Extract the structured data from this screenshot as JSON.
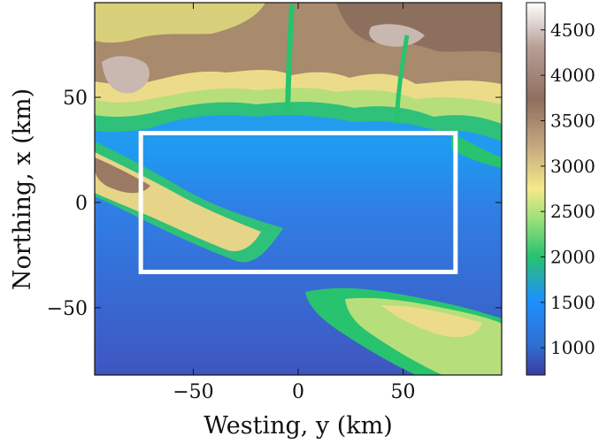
{
  "chart_data": {
    "type": "heatmap",
    "title": "",
    "xlabel": "Westing, y (km)",
    "ylabel": "Northing, x (km)",
    "xlim": [
      -97,
      97
    ],
    "ylim": [
      -82,
      95
    ],
    "xticks": [
      -50,
      0,
      50
    ],
    "xtick_labels": [
      "−50",
      "0",
      "50"
    ],
    "yticks": [
      -50,
      0,
      50
    ],
    "ytick_labels": [
      "−50",
      "0",
      "50"
    ],
    "colorbar": {
      "range": [
        700,
        4800
      ],
      "ticks": [
        1000,
        1500,
        2000,
        2500,
        3000,
        3500,
        4000,
        4500
      ],
      "tick_labels": [
        "1000",
        "1500",
        "2000",
        "2500",
        "3000",
        "3500",
        "4000",
        "4500"
      ],
      "colormap": "terrain",
      "colors": [
        "#3b3ba0",
        "#1e90ff",
        "#28c36e",
        "#f5e98a",
        "#9b7a64",
        "#ffffff"
      ]
    },
    "rectangle": {
      "y_range": [
        -75,
        75
      ],
      "x_range": [
        -33,
        33
      ],
      "color": "#ffffff"
    },
    "grid": false
  }
}
